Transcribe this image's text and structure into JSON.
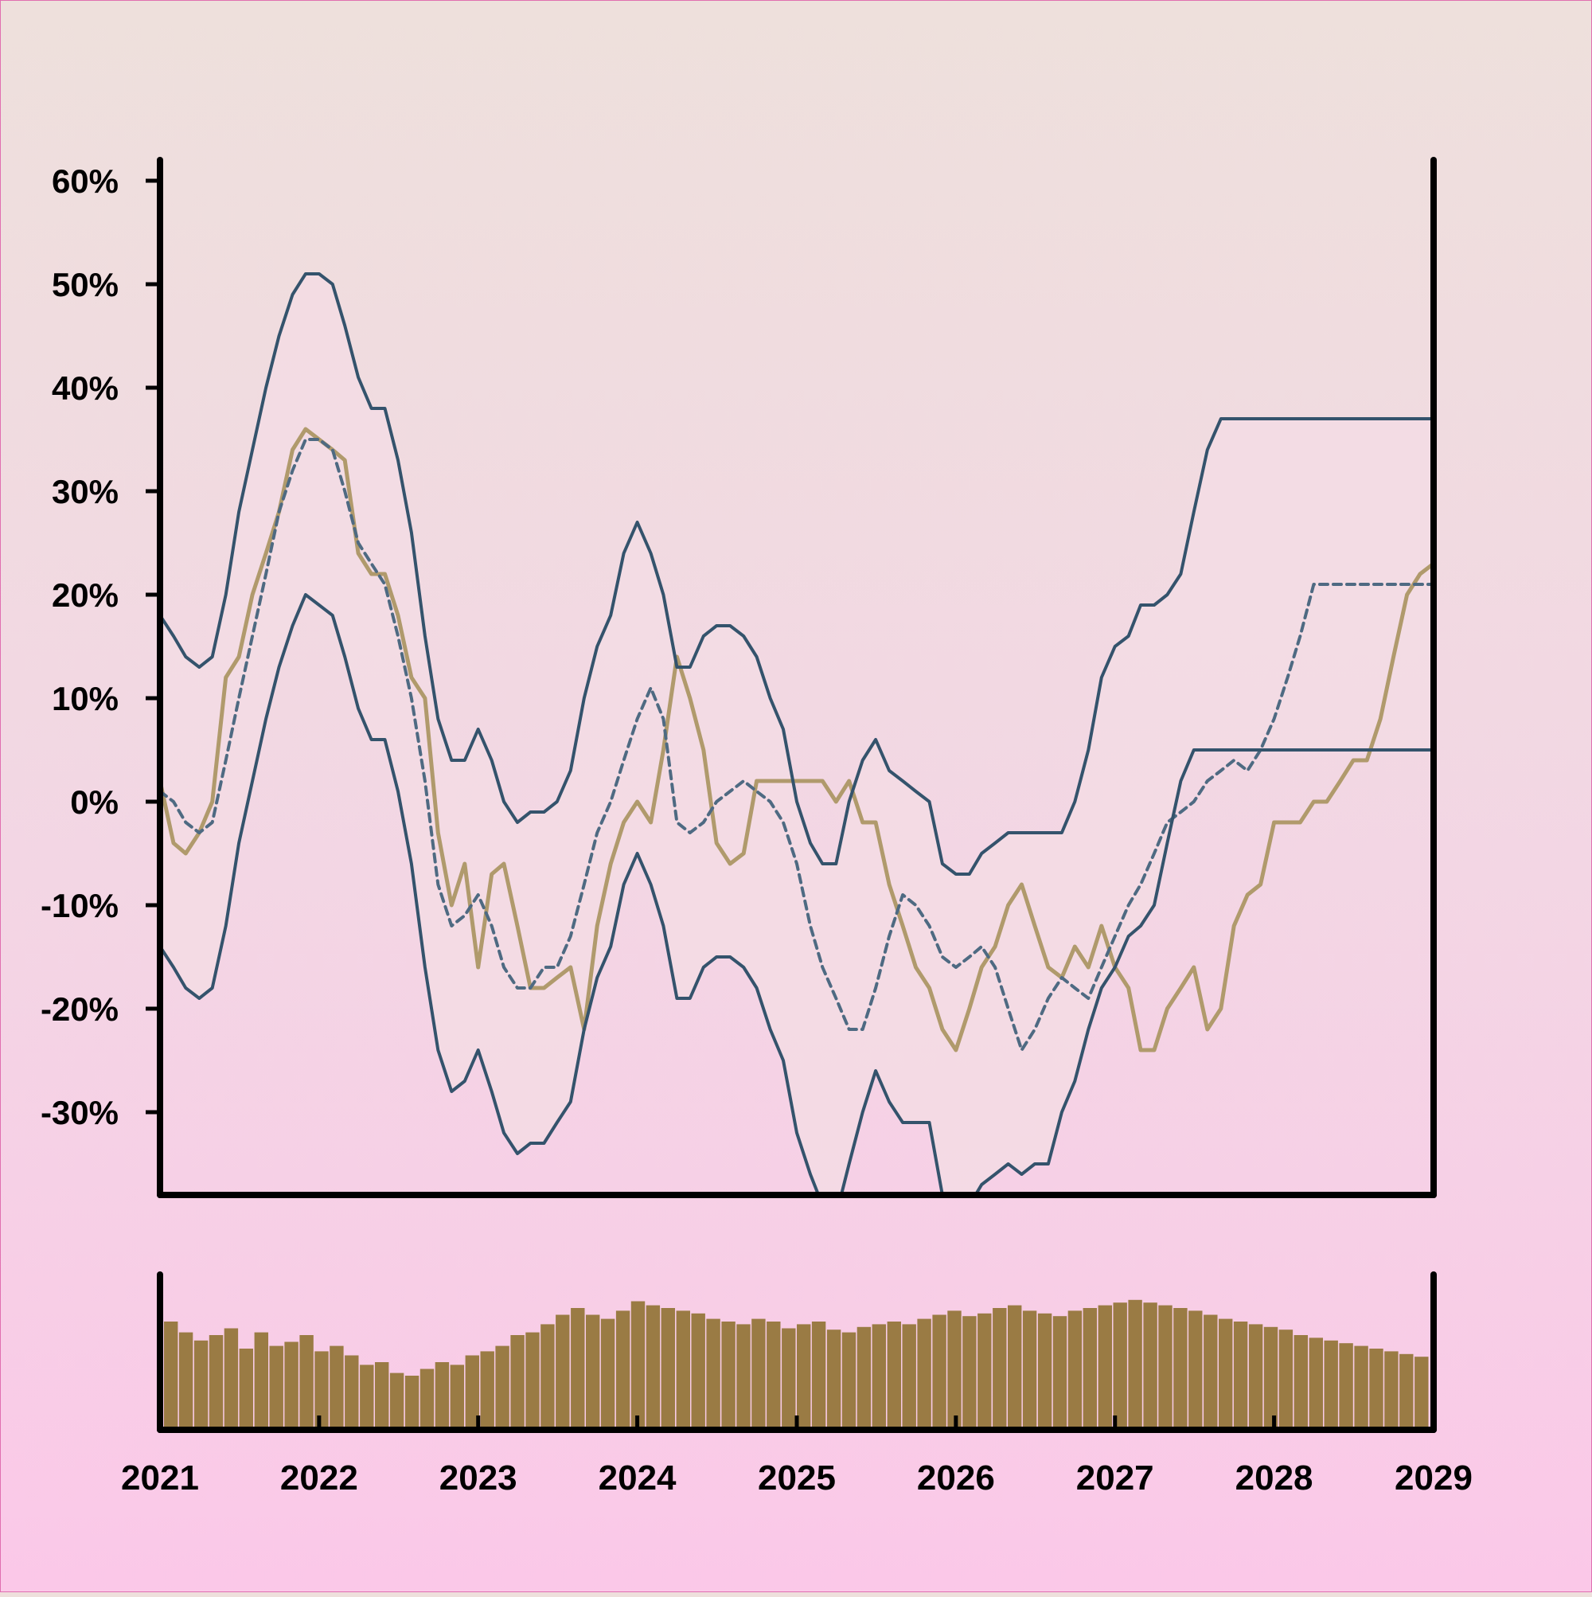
{
  "chart_data": [
    {
      "type": "line",
      "x_axis": {
        "min": "2021-01-01",
        "max": "2029-01-01",
        "ticks": [
          "2021",
          "2022",
          "2023",
          "2024",
          "2025",
          "2026",
          "2027",
          "2028",
          "2029"
        ]
      },
      "y_axis": {
        "min": -38,
        "max": 62,
        "unit": "%",
        "ticks": [
          -30,
          -20,
          -10,
          0,
          10,
          20,
          30,
          40,
          50,
          60
        ],
        "tick_labels": [
          "-30%",
          "-20%",
          "-10%",
          "0%",
          "10%",
          "20%",
          "30%",
          "40%",
          "50%",
          "60%"
        ]
      },
      "series": [
        {
          "role": "value",
          "style": "solid",
          "color": "#b09a6c",
          "x": [
            "2021-01-01",
            "2021-02-01",
            "2021-03-01",
            "2021-04-01",
            "2021-05-01",
            "2021-06-01",
            "2021-07-01",
            "2021-08-01",
            "2021-09-01",
            "2021-10-01",
            "2021-11-01",
            "2021-12-01",
            "2022-01-01",
            "2022-02-01",
            "2022-03-01",
            "2022-04-01",
            "2022-05-01",
            "2022-06-01",
            "2022-07-01",
            "2022-08-01",
            "2022-09-01",
            "2022-10-01",
            "2022-11-01",
            "2022-12-01",
            "2023-01-01",
            "2023-02-01",
            "2023-03-01",
            "2023-04-01",
            "2023-05-01",
            "2023-06-01",
            "2023-07-01",
            "2023-08-01",
            "2023-09-01",
            "2023-10-01",
            "2023-11-01",
            "2023-12-01",
            "2024-01-01",
            "2024-02-01",
            "2024-03-01",
            "2024-04-01",
            "2024-05-01",
            "2024-06-01",
            "2024-07-01",
            "2024-08-01",
            "2024-09-01",
            "2024-10-01",
            "2024-11-01",
            "2024-12-01",
            "2025-01-01",
            "2025-02-01",
            "2025-03-01",
            "2025-04-01",
            "2025-05-01",
            "2025-06-01",
            "2025-07-01",
            "2025-08-01",
            "2025-09-01",
            "2025-10-01",
            "2025-11-01",
            "2025-12-01",
            "2026-01-01",
            "2026-02-01",
            "2026-03-01",
            "2026-04-01",
            "2026-05-01",
            "2026-06-01",
            "2026-07-01",
            "2026-08-01",
            "2026-09-01",
            "2026-10-01",
            "2026-11-01",
            "2026-12-01",
            "2027-01-01",
            "2027-02-01",
            "2027-03-01",
            "2027-04-01",
            "2027-05-01",
            "2027-06-01",
            "2027-07-01",
            "2027-08-01",
            "2027-09-01",
            "2027-10-01",
            "2027-11-01",
            "2027-12-01",
            "2028-01-01",
            "2028-02-01",
            "2028-03-01",
            "2028-04-01",
            "2028-05-01",
            "2028-06-01",
            "2028-07-01",
            "2028-08-01",
            "2028-09-01",
            "2028-10-01",
            "2028-11-01",
            "2028-12-01",
            "2029-01-01"
          ],
          "y": [
            2,
            -4,
            -5,
            -3,
            0,
            12,
            14,
            20,
            24,
            28,
            34,
            36,
            35,
            34,
            33,
            24,
            22,
            22,
            18,
            12,
            10,
            -3,
            -10,
            -6,
            -16,
            -7,
            -6,
            -12,
            -18,
            -18,
            -17,
            -16,
            -22,
            -12,
            -6,
            -2,
            0,
            -2,
            5,
            14,
            10,
            5,
            -4,
            -6,
            -5,
            2,
            2,
            2,
            2,
            2,
            2,
            0,
            2,
            -2,
            -2,
            -8,
            -12,
            -16,
            -18,
            -22,
            -24,
            -20,
            -16,
            -14,
            -10,
            -8,
            -12,
            -16,
            -17,
            -14,
            -16,
            -12,
            -16,
            -18,
            -24,
            -24,
            -20,
            -18,
            -16,
            -22,
            -20,
            -12,
            -9,
            -8,
            -2,
            -2,
            -2,
            0,
            0,
            2,
            4,
            4,
            8,
            14,
            20,
            22,
            23
          ]
        },
        {
          "role": "moving-average",
          "style": "dashed",
          "color": "#4e6a82",
          "x": [
            "2021-01-01",
            "2021-02-01",
            "2021-03-01",
            "2021-04-01",
            "2021-05-01",
            "2021-06-01",
            "2021-07-01",
            "2021-08-01",
            "2021-09-01",
            "2021-10-01",
            "2021-11-01",
            "2021-12-01",
            "2022-01-01",
            "2022-02-01",
            "2022-03-01",
            "2022-04-01",
            "2022-05-01",
            "2022-06-01",
            "2022-07-01",
            "2022-08-01",
            "2022-09-01",
            "2022-10-01",
            "2022-11-01",
            "2022-12-01",
            "2023-01-01",
            "2023-02-01",
            "2023-03-01",
            "2023-04-01",
            "2023-05-01",
            "2023-06-01",
            "2023-07-01",
            "2023-08-01",
            "2023-09-01",
            "2023-10-01",
            "2023-11-01",
            "2023-12-01",
            "2024-01-01",
            "2024-02-01",
            "2024-03-01",
            "2024-04-01",
            "2024-05-01",
            "2024-06-01",
            "2024-07-01",
            "2024-08-01",
            "2024-09-01",
            "2024-10-01",
            "2024-11-01",
            "2024-12-01",
            "2025-01-01",
            "2025-02-01",
            "2025-03-01",
            "2025-04-01",
            "2025-05-01",
            "2025-06-01",
            "2025-07-01",
            "2025-08-01",
            "2025-09-01",
            "2025-10-01",
            "2025-11-01",
            "2025-12-01",
            "2026-01-01",
            "2026-02-01",
            "2026-03-01",
            "2026-04-01",
            "2026-05-01",
            "2026-06-01",
            "2026-07-01",
            "2026-08-01",
            "2026-09-01",
            "2026-10-01",
            "2026-11-01",
            "2026-12-01",
            "2027-01-01",
            "2027-02-01",
            "2027-03-01",
            "2027-04-01",
            "2027-05-01",
            "2027-06-01",
            "2027-07-01",
            "2027-08-01",
            "2027-09-01",
            "2027-10-01",
            "2027-11-01",
            "2027-12-01",
            "2028-01-01",
            "2028-02-01",
            "2028-03-01",
            "2028-04-01",
            "2028-05-01",
            "2028-06-01",
            "2028-07-01",
            "2028-08-01",
            "2028-09-01",
            "2028-10-01",
            "2028-11-01",
            "2028-12-01",
            "2029-01-01"
          ],
          "y": [
            1,
            0,
            -2,
            -3,
            -2,
            4,
            10,
            16,
            22,
            28,
            32,
            35,
            35,
            34,
            30,
            25,
            23,
            21,
            16,
            10,
            2,
            -8,
            -12,
            -11,
            -9,
            -12,
            -16,
            -18,
            -18,
            -16,
            -16,
            -13,
            -8,
            -3,
            0,
            4,
            8,
            11,
            8,
            -2,
            -3,
            -2,
            0,
            1,
            2,
            1,
            0,
            -2,
            -6,
            -12,
            -16,
            -19,
            -22,
            -22,
            -18,
            -13,
            -9,
            -10,
            -12,
            -15,
            -16,
            -15,
            -14,
            -16,
            -20,
            -24,
            -22,
            -19,
            -17,
            -18,
            -19,
            -16,
            -13,
            -10,
            -8,
            -5,
            -2,
            -1,
            0,
            2,
            3,
            4,
            3,
            5,
            8,
            12,
            16,
            21,
            21,
            21,
            21,
            21,
            21,
            21,
            21,
            21,
            21
          ]
        },
        {
          "role": "upper-band",
          "style": "solid",
          "color": "#34536c",
          "x": [
            "2021-01-01",
            "2021-02-01",
            "2021-03-01",
            "2021-04-01",
            "2021-05-01",
            "2021-06-01",
            "2021-07-01",
            "2021-08-01",
            "2021-09-01",
            "2021-10-01",
            "2021-11-01",
            "2021-12-01",
            "2022-01-01",
            "2022-02-01",
            "2022-03-01",
            "2022-04-01",
            "2022-05-01",
            "2022-06-01",
            "2022-07-01",
            "2022-08-01",
            "2022-09-01",
            "2022-10-01",
            "2022-11-01",
            "2022-12-01",
            "2023-01-01",
            "2023-02-01",
            "2023-03-01",
            "2023-04-01",
            "2023-05-01",
            "2023-06-01",
            "2023-07-01",
            "2023-08-01",
            "2023-09-01",
            "2023-10-01",
            "2023-11-01",
            "2023-12-01",
            "2024-01-01",
            "2024-02-01",
            "2024-03-01",
            "2024-04-01",
            "2024-05-01",
            "2024-06-01",
            "2024-07-01",
            "2024-08-01",
            "2024-09-01",
            "2024-10-01",
            "2024-11-01",
            "2024-12-01",
            "2025-01-01",
            "2025-02-01",
            "2025-03-01",
            "2025-04-01",
            "2025-05-01",
            "2025-06-01",
            "2025-07-01",
            "2025-08-01",
            "2025-09-01",
            "2025-10-01",
            "2025-11-01",
            "2025-12-01",
            "2026-01-01",
            "2026-02-01",
            "2026-03-01",
            "2026-04-01",
            "2026-05-01",
            "2026-06-01",
            "2026-07-01",
            "2026-08-01",
            "2026-09-01",
            "2026-10-01",
            "2026-11-01",
            "2026-12-01",
            "2027-01-01",
            "2027-02-01",
            "2027-03-01",
            "2027-04-01",
            "2027-05-01",
            "2027-06-01",
            "2027-07-01",
            "2027-08-01",
            "2027-09-01",
            "2027-10-01",
            "2027-11-01",
            "2027-12-01",
            "2028-01-01",
            "2028-02-01",
            "2028-03-01",
            "2028-04-01",
            "2028-05-01",
            "2028-06-01",
            "2028-07-01",
            "2028-08-01",
            "2028-09-01",
            "2028-10-01",
            "2028-11-01",
            "2028-12-01",
            "2029-01-01"
          ],
          "y": [
            18,
            16,
            14,
            13,
            14,
            20,
            28,
            34,
            40,
            45,
            49,
            51,
            51,
            50,
            46,
            41,
            38,
            38,
            33,
            26,
            16,
            8,
            4,
            4,
            7,
            4,
            0,
            -2,
            -1,
            -1,
            0,
            3,
            10,
            15,
            18,
            24,
            27,
            24,
            20,
            13,
            13,
            16,
            17,
            17,
            16,
            14,
            10,
            7,
            0,
            -4,
            -6,
            -6,
            0,
            4,
            6,
            3,
            2,
            1,
            0,
            -6,
            -7,
            -7,
            -5,
            -4,
            -3,
            -3,
            -3,
            -3,
            -3,
            0,
            5,
            12,
            15,
            16,
            19,
            19,
            20,
            22,
            28,
            34,
            37,
            37,
            37,
            37,
            37,
            37,
            37,
            37,
            37,
            37,
            37,
            37,
            37,
            37,
            37,
            37,
            37
          ]
        },
        {
          "role": "lower-band",
          "style": "solid",
          "color": "#34536c",
          "x": [
            "2021-01-01",
            "2021-02-01",
            "2021-03-01",
            "2021-04-01",
            "2021-05-01",
            "2021-06-01",
            "2021-07-01",
            "2021-08-01",
            "2021-09-01",
            "2021-10-01",
            "2021-11-01",
            "2021-12-01",
            "2022-01-01",
            "2022-02-01",
            "2022-03-01",
            "2022-04-01",
            "2022-05-01",
            "2022-06-01",
            "2022-07-01",
            "2022-08-01",
            "2022-09-01",
            "2022-10-01",
            "2022-11-01",
            "2022-12-01",
            "2023-01-01",
            "2023-02-01",
            "2023-03-01",
            "2023-04-01",
            "2023-05-01",
            "2023-06-01",
            "2023-07-01",
            "2023-08-01",
            "2023-09-01",
            "2023-10-01",
            "2023-11-01",
            "2023-12-01",
            "2024-01-01",
            "2024-02-01",
            "2024-03-01",
            "2024-04-01",
            "2024-05-01",
            "2024-06-01",
            "2024-07-01",
            "2024-08-01",
            "2024-09-01",
            "2024-10-01",
            "2024-11-01",
            "2024-12-01",
            "2025-01-01",
            "2025-02-01",
            "2025-03-01",
            "2025-04-01",
            "2025-05-01",
            "2025-06-01",
            "2025-07-01",
            "2025-08-01",
            "2025-09-01",
            "2025-10-01",
            "2025-11-01",
            "2025-12-01",
            "2026-01-01",
            "2026-02-01",
            "2026-03-01",
            "2026-04-01",
            "2026-05-01",
            "2026-06-01",
            "2026-07-01",
            "2026-08-01",
            "2026-09-01",
            "2026-10-01",
            "2026-11-01",
            "2026-12-01",
            "2027-01-01",
            "2027-02-01",
            "2027-03-01",
            "2027-04-01",
            "2027-05-01",
            "2027-06-01",
            "2027-07-01",
            "2027-08-01",
            "2027-09-01",
            "2027-10-01",
            "2027-11-01",
            "2027-12-01",
            "2028-01-01",
            "2028-02-01",
            "2028-03-01",
            "2028-04-01",
            "2028-05-01",
            "2028-06-01",
            "2028-07-01",
            "2028-08-01",
            "2028-09-01",
            "2028-10-01",
            "2028-11-01",
            "2028-12-01",
            "2029-01-01"
          ],
          "y": [
            -14,
            -16,
            -18,
            -19,
            -18,
            -12,
            -4,
            2,
            8,
            13,
            17,
            20,
            19,
            18,
            14,
            9,
            6,
            6,
            1,
            -6,
            -16,
            -24,
            -28,
            -27,
            -24,
            -28,
            -32,
            -34,
            -33,
            -33,
            -31,
            -29,
            -22,
            -17,
            -14,
            -8,
            -5,
            -8,
            -12,
            -19,
            -19,
            -16,
            -15,
            -15,
            -16,
            -18,
            -22,
            -25,
            -32,
            -36,
            -39,
            -40,
            -35,
            -30,
            -26,
            -29,
            -31,
            -31,
            -31,
            -38,
            -39,
            -39,
            -37,
            -36,
            -35,
            -36,
            -35,
            -35,
            -30,
            -27,
            -22,
            -18,
            -16,
            -13,
            -12,
            -10,
            -4,
            2,
            5,
            5,
            5,
            5,
            5,
            5,
            5,
            5,
            5,
            5,
            5,
            5,
            5,
            5,
            5,
            5,
            5,
            5,
            5
          ]
        }
      ],
      "bands_fill": "#f3dce4"
    },
    {
      "type": "bar",
      "role": "volume",
      "color": "#9a7b44",
      "x_range": [
        "2021-01-01",
        "2029-01-01"
      ],
      "values": [
        80,
        72,
        66,
        70,
        75,
        60,
        72,
        62,
        65,
        70,
        58,
        62,
        55,
        48,
        50,
        42,
        40,
        45,
        50,
        48,
        55,
        58,
        62,
        70,
        72,
        78,
        85,
        90,
        85,
        82,
        88,
        95,
        92,
        90,
        88,
        86,
        82,
        80,
        78,
        82,
        80,
        75,
        78,
        80,
        74,
        72,
        76,
        78,
        80,
        78,
        82,
        85,
        88,
        84,
        86,
        90,
        92,
        88,
        86,
        84,
        88,
        90,
        92,
        94,
        96,
        94,
        92,
        90,
        88,
        85,
        82,
        80,
        78,
        76,
        74,
        70,
        68,
        66,
        64,
        62,
        60,
        58,
        56,
        54
      ],
      "y_range": [
        0,
        100
      ]
    }
  ]
}
